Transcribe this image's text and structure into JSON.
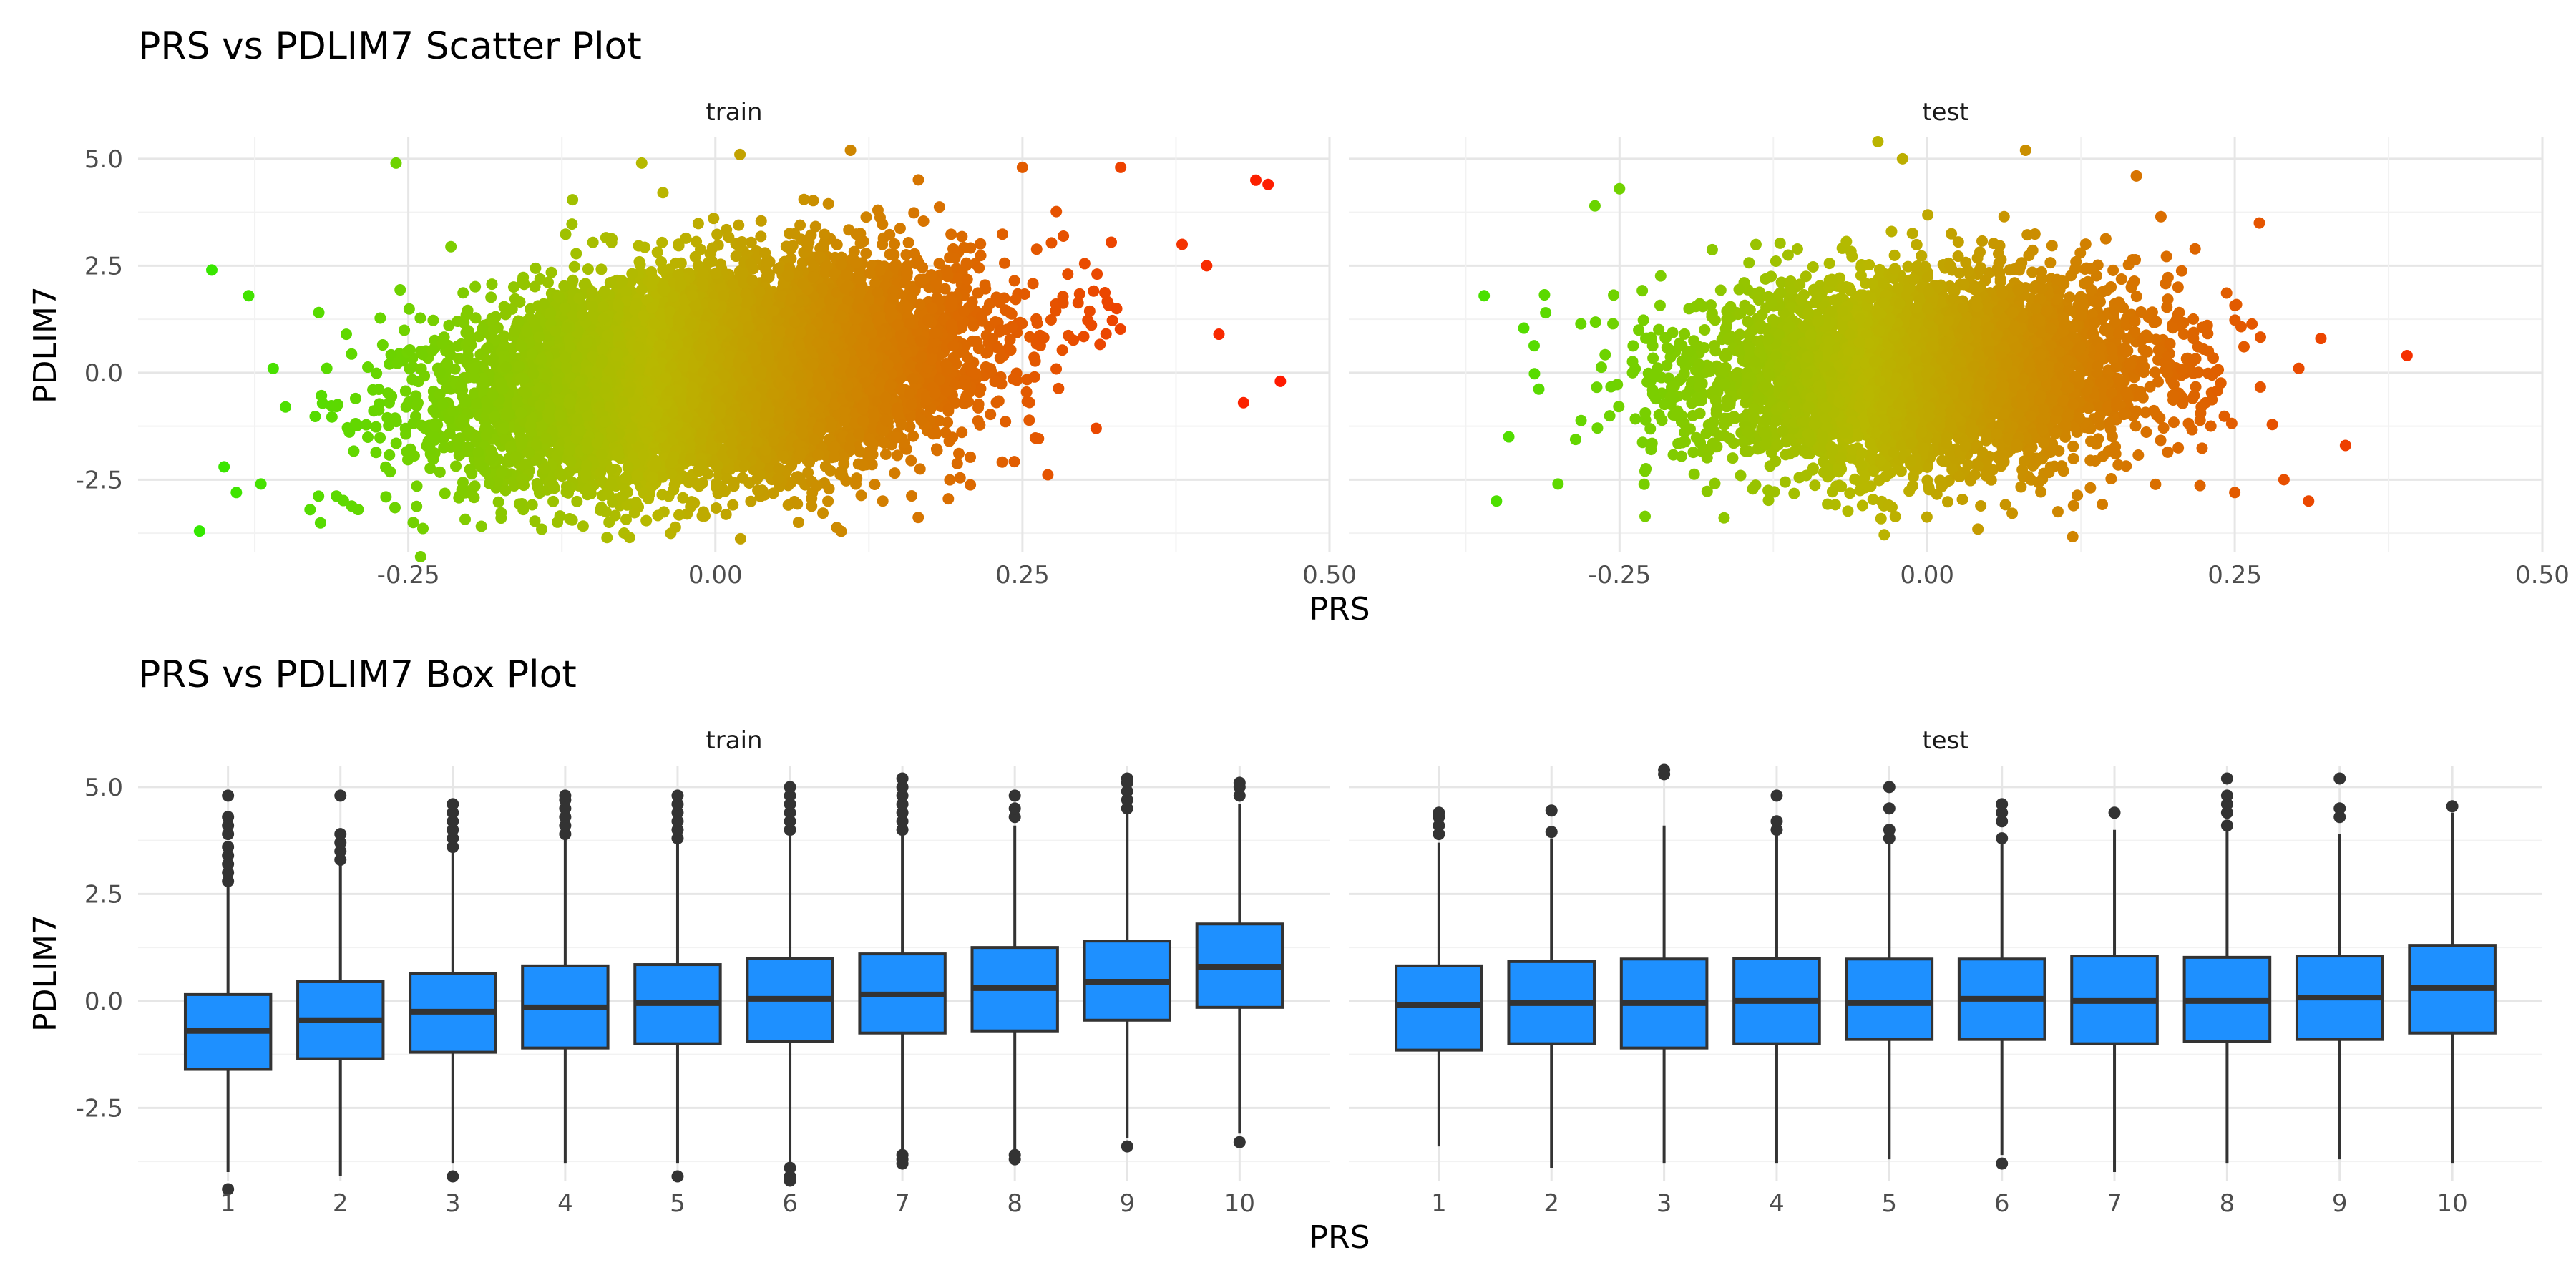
{
  "chart_data": [
    {
      "type": "scatter",
      "title": "PRS vs PDLIM7 Scatter Plot",
      "xlabel": "PRS",
      "ylabel": "PDLIM7",
      "panels": [
        "train",
        "test"
      ],
      "xlim": [
        -0.47,
        0.5
      ],
      "ylim": [
        -4.2,
        5.5
      ],
      "xticks": [
        -0.25,
        0.0,
        0.25,
        0.5
      ],
      "xtick_labels": [
        "-0.25",
        "0.00",
        "0.25",
        "0.50"
      ],
      "yticks": [
        -2.5,
        0.0,
        2.5,
        5.0
      ],
      "ytick_labels": [
        "-2.5",
        "0.0",
        "2.5",
        "5.0"
      ],
      "grid": true,
      "color_by": "PRS",
      "color_low": "#22ee00",
      "color_mid": "#b8b800",
      "color_high": "#ff1a00",
      "series": [
        {
          "panel": "train",
          "cloud": {
            "x_mean": 0.0,
            "x_sd": 0.1,
            "y_mean": 0.0,
            "y_sd": 1.2,
            "corr": 0.28
          },
          "points": [
            [
              -0.42,
              -3.7
            ],
            [
              -0.41,
              2.4
            ],
            [
              -0.4,
              -2.2
            ],
            [
              -0.39,
              -2.8
            ],
            [
              -0.38,
              1.8
            ],
            [
              -0.37,
              -2.6
            ],
            [
              -0.36,
              0.1
            ],
            [
              -0.35,
              -0.8
            ],
            [
              -0.33,
              -3.2
            ],
            [
              -0.26,
              4.9
            ],
            [
              -0.24,
              -4.3
            ],
            [
              0.25,
              4.8
            ],
            [
              0.31,
              -1.3
            ],
            [
              0.33,
              4.8
            ],
            [
              0.38,
              3.0
            ],
            [
              0.4,
              2.5
            ],
            [
              0.41,
              0.9
            ],
            [
              0.43,
              -0.7
            ],
            [
              0.44,
              4.5
            ],
            [
              0.45,
              4.4
            ],
            [
              0.46,
              -0.2
            ],
            [
              0.02,
              5.1
            ],
            [
              0.11,
              5.2
            ],
            [
              -0.06,
              4.9
            ]
          ]
        },
        {
          "panel": "test",
          "cloud": {
            "x_mean": 0.0,
            "x_sd": 0.09,
            "y_mean": 0.0,
            "y_sd": 1.1,
            "corr": 0.12
          },
          "points": [
            [
              -0.36,
              1.8
            ],
            [
              -0.35,
              -3.0
            ],
            [
              -0.34,
              -1.5
            ],
            [
              -0.31,
              1.4
            ],
            [
              -0.27,
              3.9
            ],
            [
              -0.25,
              4.3
            ],
            [
              -0.3,
              -2.6
            ],
            [
              -0.04,
              5.4
            ],
            [
              -0.02,
              5.0
            ],
            [
              0.08,
              5.2
            ],
            [
              0.25,
              -2.8
            ],
            [
              0.29,
              -2.5
            ],
            [
              0.31,
              -3.0
            ],
            [
              0.32,
              0.8
            ],
            [
              0.34,
              -1.7
            ],
            [
              0.39,
              0.4
            ],
            [
              0.27,
              3.5
            ],
            [
              0.17,
              4.6
            ]
          ]
        }
      ]
    },
    {
      "type": "box",
      "title": "PRS vs PDLIM7 Box Plot",
      "xlabel": "PRS",
      "ylabel": "PDLIM7",
      "panels": [
        "train",
        "test"
      ],
      "categories": [
        "1",
        "2",
        "3",
        "4",
        "5",
        "6",
        "7",
        "8",
        "9",
        "10"
      ],
      "ylim": [
        -4.2,
        5.5
      ],
      "yticks": [
        -2.5,
        0.0,
        2.5,
        5.0
      ],
      "ytick_labels": [
        "-2.5",
        "0.0",
        "2.5",
        "5.0"
      ],
      "grid": true,
      "box_fill": "#1e90ff",
      "series": [
        {
          "panel": "train",
          "boxes": [
            {
              "q1": -1.6,
              "median": -0.7,
              "q3": 0.15,
              "whisker_low": -4.0,
              "whisker_high": 2.7,
              "outliers": [
                2.8,
                3.0,
                3.2,
                3.4,
                3.6,
                3.9,
                4.1,
                4.3,
                4.8,
                -4.4
              ]
            },
            {
              "q1": -1.35,
              "median": -0.45,
              "q3": 0.45,
              "whisker_low": -4.1,
              "whisker_high": 3.2,
              "outliers": [
                3.3,
                3.5,
                3.7,
                3.9,
                4.8
              ]
            },
            {
              "q1": -1.2,
              "median": -0.25,
              "q3": 0.65,
              "whisker_low": -3.8,
              "whisker_high": 3.5,
              "outliers": [
                3.6,
                3.8,
                4.0,
                4.2,
                4.4,
                4.6,
                -4.1
              ]
            },
            {
              "q1": -1.1,
              "median": -0.15,
              "q3": 0.82,
              "whisker_low": -3.8,
              "whisker_high": 3.8,
              "outliers": [
                3.9,
                4.1,
                4.3,
                4.5,
                4.7,
                4.8
              ]
            },
            {
              "q1": -1.0,
              "median": -0.05,
              "q3": 0.85,
              "whisker_low": -3.8,
              "whisker_high": 3.7,
              "outliers": [
                3.8,
                4.0,
                4.2,
                4.4,
                4.6,
                4.8,
                -4.1
              ]
            },
            {
              "q1": -0.95,
              "median": 0.05,
              "q3": 1.0,
              "whisker_low": -3.8,
              "whisker_high": 3.9,
              "outliers": [
                4.0,
                4.2,
                4.4,
                4.6,
                4.8,
                5.0,
                -3.9,
                -4.1,
                -4.2
              ]
            },
            {
              "q1": -0.75,
              "median": 0.15,
              "q3": 1.1,
              "whisker_low": -3.5,
              "whisker_high": 3.9,
              "outliers": [
                4.0,
                4.2,
                4.4,
                4.6,
                4.8,
                5.0,
                5.2,
                -3.6,
                -3.7,
                -3.8
              ]
            },
            {
              "q1": -0.7,
              "median": 0.3,
              "q3": 1.25,
              "whisker_low": -3.5,
              "whisker_high": 4.1,
              "outliers": [
                4.3,
                4.5,
                4.8,
                -3.6,
                -3.7
              ]
            },
            {
              "q1": -0.45,
              "median": 0.45,
              "q3": 1.4,
              "whisker_low": -3.2,
              "whisker_high": 4.4,
              "outliers": [
                4.5,
                4.7,
                4.9,
                5.1,
                5.2,
                -3.4
              ]
            },
            {
              "q1": -0.15,
              "median": 0.8,
              "q3": 1.8,
              "whisker_low": -3.1,
              "whisker_high": 4.6,
              "outliers": [
                4.8,
                5.0,
                5.1,
                -3.3
              ]
            }
          ]
        },
        {
          "panel": "test",
          "boxes": [
            {
              "q1": -1.15,
              "median": -0.1,
              "q3": 0.82,
              "whisker_low": -3.4,
              "whisker_high": 3.7,
              "outliers": [
                3.9,
                4.1,
                4.3,
                4.4
              ]
            },
            {
              "q1": -1.0,
              "median": -0.05,
              "q3": 0.92,
              "whisker_low": -3.9,
              "whisker_high": 3.8,
              "outliers": [
                3.95,
                4.45
              ]
            },
            {
              "q1": -1.1,
              "median": -0.05,
              "q3": 0.98,
              "whisker_low": -3.8,
              "whisker_high": 4.1,
              "outliers": [
                5.3,
                5.4
              ]
            },
            {
              "q1": -1.0,
              "median": 0.0,
              "q3": 1.0,
              "whisker_low": -3.8,
              "whisker_high": 3.9,
              "outliers": [
                4.0,
                4.2,
                4.8
              ]
            },
            {
              "q1": -0.9,
              "median": -0.05,
              "q3": 0.98,
              "whisker_low": -3.7,
              "whisker_high": 3.7,
              "outliers": [
                3.8,
                4.0,
                4.5,
                5.0
              ]
            },
            {
              "q1": -0.9,
              "median": 0.05,
              "q3": 0.98,
              "whisker_low": -3.6,
              "whisker_high": 3.7,
              "outliers": [
                3.8,
                4.2,
                4.4,
                4.6,
                -3.8
              ]
            },
            {
              "q1": -1.0,
              "median": 0.0,
              "q3": 1.05,
              "whisker_low": -4.0,
              "whisker_high": 4.0,
              "outliers": [
                4.4
              ]
            },
            {
              "q1": -0.95,
              "median": 0.0,
              "q3": 1.02,
              "whisker_low": -3.8,
              "whisker_high": 4.0,
              "outliers": [
                4.1,
                4.4,
                4.6,
                4.8,
                5.2
              ]
            },
            {
              "q1": -0.9,
              "median": 0.08,
              "q3": 1.05,
              "whisker_low": -3.7,
              "whisker_high": 3.9,
              "outliers": [
                4.3,
                4.5,
                5.2
              ]
            },
            {
              "q1": -0.75,
              "median": 0.3,
              "q3": 1.3,
              "whisker_low": -3.8,
              "whisker_high": 4.4,
              "outliers": [
                4.55
              ]
            }
          ]
        }
      ]
    }
  ]
}
